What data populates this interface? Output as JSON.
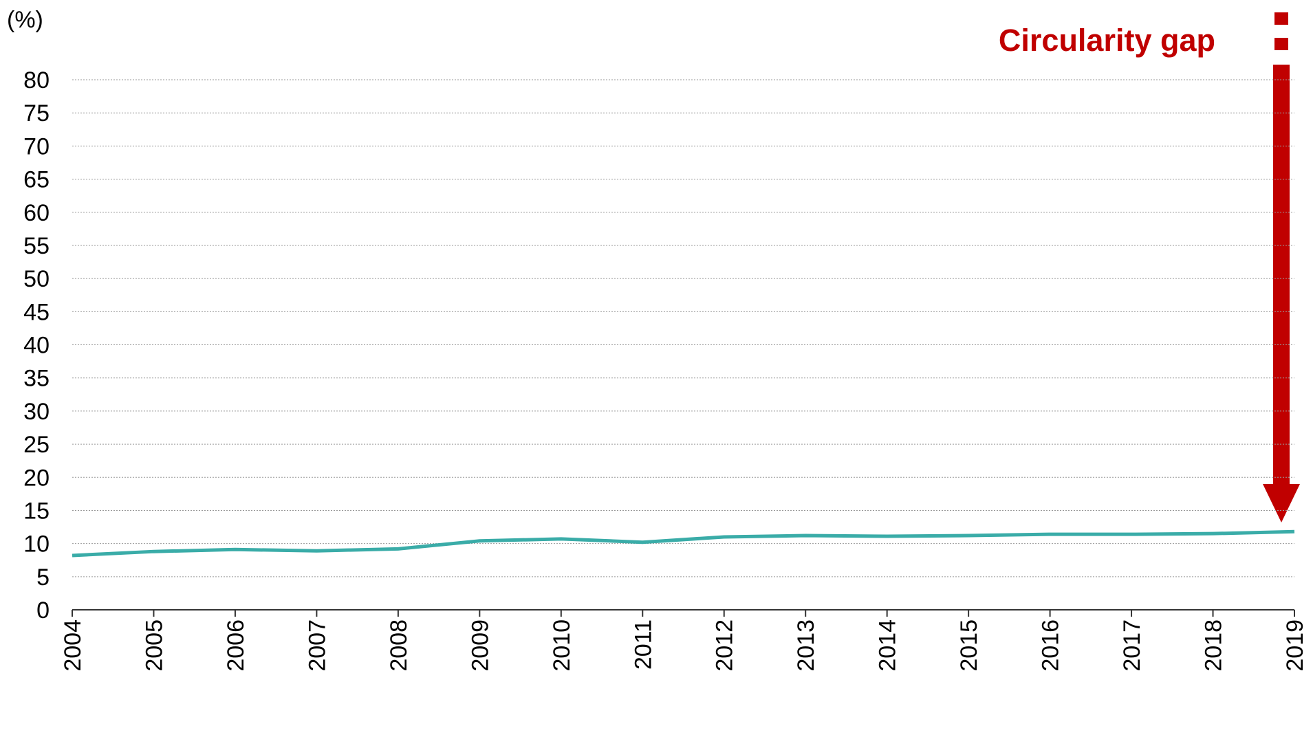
{
  "chart_data": {
    "type": "line",
    "y_label": "(%)",
    "annotation": "Circularity gap",
    "x": [
      2004,
      2005,
      2006,
      2007,
      2008,
      2009,
      2010,
      2011,
      2012,
      2013,
      2014,
      2015,
      2016,
      2017,
      2018,
      2019
    ],
    "series": [
      {
        "name": null,
        "color": "#3aaca8",
        "values": [
          8.2,
          8.8,
          9.1,
          8.9,
          9.2,
          10.4,
          10.7,
          10.2,
          11.0,
          11.2,
          11.1,
          11.2,
          11.4,
          11.4,
          11.5,
          11.8
        ]
      }
    ],
    "xlim": [
      2004,
      2019
    ],
    "xticks": [
      2004,
      2005,
      2006,
      2007,
      2008,
      2009,
      2010,
      2011,
      2012,
      2013,
      2014,
      2015,
      2016,
      2017,
      2018,
      2019
    ],
    "ylim": [
      0,
      80
    ],
    "yticks": [
      0,
      5,
      10,
      15,
      20,
      25,
      30,
      35,
      40,
      45,
      50,
      55,
      60,
      65,
      70,
      75,
      80
    ],
    "grid": true
  }
}
